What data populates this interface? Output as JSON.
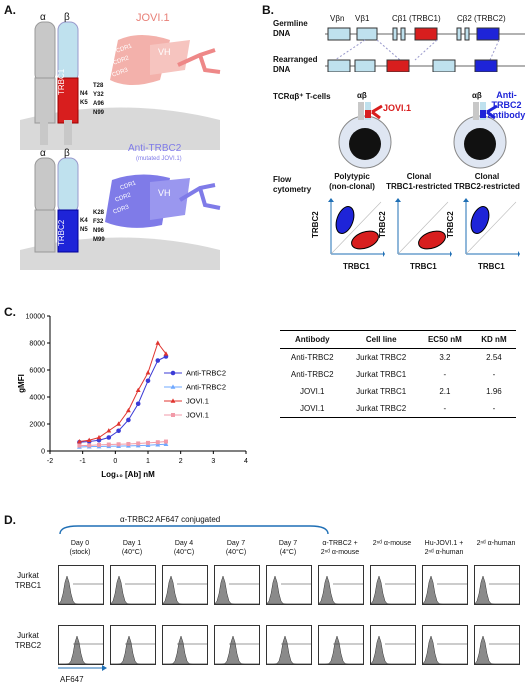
{
  "panelA": {
    "label": "A.",
    "top": {
      "alpha": "α",
      "beta": "β",
      "chain": "TRBC1",
      "name": "JOVI.1",
      "vh": "VH",
      "cdrs": [
        "CDR1",
        "CDR2",
        "CDR3"
      ],
      "residues_left": [
        "N4",
        "K5"
      ],
      "residues_right": [
        "T28",
        "Y32",
        "A96",
        "N99"
      ]
    },
    "bottom": {
      "alpha": "α",
      "beta": "β",
      "chain": "TRBC2",
      "name": "Anti-TRBC2",
      "subname": "(mutated JOVI.1)",
      "vh": "VH",
      "cdrs": [
        "CDR1",
        "CDR2",
        "CDR3"
      ],
      "residues_left": [
        "K4",
        "N5"
      ],
      "residues_right": [
        "K28",
        "F32",
        "N96",
        "M99"
      ]
    }
  },
  "panelB": {
    "label": "B.",
    "germline": "Germline\nDNA",
    "germline_l1": "Germline",
    "germline_l2": "DNA",
    "rearranged_l1": "Rearranged",
    "rearranged_l2": "DNA",
    "genes": [
      "Vβn",
      "Vβ1",
      "Cβ1 (TRBC1)",
      "Cβ2 (TRBC2)"
    ],
    "tcells": "TCRαβ⁺ T-cells",
    "ab": "αβ",
    "jovi": "JOVI.1",
    "anti_l1": "Anti-TRBC2",
    "anti_l2": "antibody",
    "flow_l1": "Flow",
    "flow_l2": "cytometry",
    "plots": [
      {
        "title_l1": "Polytypic",
        "title_l2": "(non-clonal)"
      },
      {
        "title_l1": "Clonal",
        "title_l2": "TRBC1-restricted"
      },
      {
        "title_l1": "Clonal",
        "title_l2": "TRBC2-restricted"
      }
    ],
    "xaxis": "TRBC1",
    "yaxis": "TRBC2"
  },
  "panelC": {
    "label": "C.",
    "table": {
      "headers": [
        "Antibody",
        "Cell line",
        "EC50 nM",
        "KD nM"
      ],
      "rows": [
        [
          "Anti-TRBC2",
          "Jurkat TRBC2",
          "3.2",
          "2.54"
        ],
        [
          "Anti-TRBC2",
          "Jurkat TRBC1",
          "-",
          "-"
        ],
        [
          "JOVI.1",
          "Jurkat TRBC1",
          "2.1",
          "1.96"
        ],
        [
          "JOVI.1",
          "Jurkat TRBC2",
          "-",
          "-"
        ]
      ]
    }
  },
  "chart_data": {
    "type": "scatter",
    "xlabel": "Log₁₀ [Ab] nM",
    "ylabel": "gMFI",
    "xlim": [
      -2,
      4
    ],
    "ylim": [
      0,
      10000
    ],
    "xticks": [
      -2,
      -1,
      0,
      1,
      2,
      3,
      4
    ],
    "yticks": [
      0,
      2000,
      4000,
      6000,
      8000,
      10000
    ],
    "series": [
      {
        "name": "Anti-TRBC2",
        "color": "#3b3bd6",
        "marker": "circle",
        "x": [
          -1.1,
          -0.8,
          -0.5,
          -0.2,
          0.1,
          0.4,
          0.7,
          1.0,
          1.3,
          1.55
        ],
        "y": [
          650,
          700,
          800,
          1000,
          1500,
          2300,
          3500,
          5200,
          6700,
          7000
        ],
        "fit": true
      },
      {
        "name": "Anti-TRBC2",
        "color": "#6fa8ff",
        "marker": "triangle",
        "x": [
          -1.1,
          -0.8,
          -0.5,
          -0.2,
          0.1,
          0.4,
          0.7,
          1.0,
          1.3,
          1.55
        ],
        "y": [
          300,
          320,
          330,
          350,
          360,
          380,
          400,
          430,
          470,
          500
        ],
        "fit": false
      },
      {
        "name": "JOVI.1",
        "color": "#e0342f",
        "marker": "triangle",
        "x": [
          -1.1,
          -0.8,
          -0.5,
          -0.2,
          0.1,
          0.4,
          0.7,
          1.0,
          1.3,
          1.55
        ],
        "y": [
          700,
          800,
          1000,
          1500,
          2000,
          3000,
          4500,
          5800,
          8000,
          7200
        ],
        "fit": true
      },
      {
        "name": "JOVI.1",
        "color": "#f29aa8",
        "marker": "square",
        "x": [
          -1.1,
          -0.8,
          -0.5,
          -0.2,
          0.1,
          0.4,
          0.7,
          1.0,
          1.3,
          1.55
        ],
        "y": [
          400,
          420,
          450,
          480,
          500,
          520,
          560,
          600,
          650,
          700
        ],
        "fit": false
      }
    ]
  },
  "panelD": {
    "label": "D.",
    "bracket": "α-TRBC2 AF647 conjugated",
    "cols": [
      {
        "l1": "Day 0",
        "l2": "(stock)"
      },
      {
        "l1": "Day 1",
        "l2": "(40°C)"
      },
      {
        "l1": "Day 4",
        "l2": "(40°C)"
      },
      {
        "l1": "Day 7",
        "l2": "(40°C)"
      },
      {
        "l1": "Day 7",
        "l2": "(4°C)"
      },
      {
        "l1": "α-TRBC2 +",
        "l2": "2ⁿᵈ α-mouse"
      },
      {
        "l1": "",
        "l2": "2ⁿᵈ α-mouse"
      },
      {
        "l1": "Hu-JOVI.1 +",
        "l2": "2ⁿᵈ α-human"
      },
      {
        "l1": "",
        "l2": "2ⁿᵈ α-human"
      }
    ],
    "rows": [
      {
        "l1": "Jurkat",
        "l2": "TRBC1"
      },
      {
        "l1": "Jurkat",
        "l2": "TRBC2"
      }
    ],
    "xaxis": "AF647"
  }
}
